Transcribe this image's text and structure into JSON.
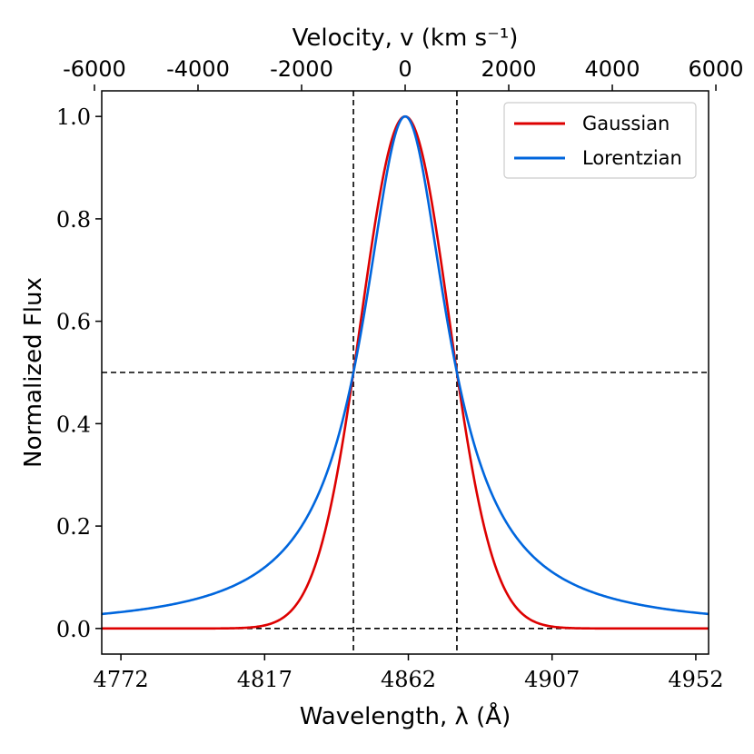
{
  "chart_data": {
    "type": "line",
    "title": "",
    "xlabel": "Wavelength, λ (Å)",
    "ylabel": "Normalized Flux",
    "top_xlabel": "Velocity, v (km s⁻¹)",
    "xlim": [
      4766,
      4956
    ],
    "ylim": [
      -0.05,
      1.05
    ],
    "x_ticks": [
      4772,
      4817,
      4862,
      4907,
      4952
    ],
    "x_tick_labels": [
      "4772",
      "4817",
      "4862",
      "4907",
      "4952"
    ],
    "y_ticks": [
      0.0,
      0.2,
      0.4,
      0.6,
      0.8,
      1.0
    ],
    "y_tick_labels": [
      "0.0",
      "0.2",
      "0.4",
      "0.6",
      "0.8",
      "1.0"
    ],
    "top_axis": {
      "unit": "km s⁻¹",
      "ticks": [
        -6000,
        -4000,
        -2000,
        0,
        2000,
        4000,
        6000
      ],
      "tick_labels": [
        "-6000",
        "-4000",
        "-2000",
        "0",
        "2000",
        "4000",
        "6000"
      ],
      "center_wavelength": 4861,
      "c_kms": 299792.458
    },
    "center": 4861,
    "fwhm_angstrom": 32.4,
    "series": [
      {
        "name": "Gaussian",
        "profile": "gaussian",
        "color": "#dd0000",
        "peak": 1.0
      },
      {
        "name": "Lorentzian",
        "profile": "lorentzian",
        "color": "#0066dd",
        "peak": 1.0
      }
    ],
    "reference_lines": {
      "horizontal": [
        0.5,
        0.0
      ],
      "vertical": [
        4844.8,
        4877.2
      ],
      "style": "dashed",
      "color": "#000000"
    },
    "legend": {
      "position": "top-right",
      "entries": [
        "Gaussian",
        "Lorentzian"
      ]
    }
  }
}
